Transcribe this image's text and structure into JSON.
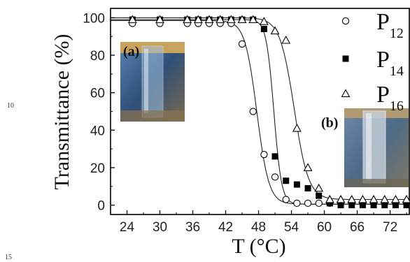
{
  "page": {
    "line_numbers": [
      "10",
      "15"
    ]
  },
  "chart_data": {
    "type": "scatter",
    "xlabel": "T (°C)",
    "ylabel": "Transmittance (%)",
    "xlim": [
      21,
      75.5
    ],
    "ylim": [
      -5,
      105
    ],
    "xticks": [
      24,
      30,
      36,
      42,
      48,
      54,
      60,
      66,
      72
    ],
    "yticks": [
      0,
      20,
      40,
      60,
      80,
      100
    ],
    "grid": false,
    "legend_position": "top-right",
    "legend": [
      {
        "base": "P",
        "sub": "12",
        "marker": "circle-open"
      },
      {
        "base": "P",
        "sub": "14",
        "marker": "square-filled"
      },
      {
        "base": "P",
        "sub": "16",
        "marker": "triangle-open"
      }
    ],
    "series": [
      {
        "name": "P12",
        "marker": "circle-open",
        "x": [
          25,
          30,
          35,
          37,
          39,
          41,
          43,
          45,
          47,
          49,
          51,
          53,
          55,
          57,
          59,
          61,
          63,
          65,
          67,
          69,
          71,
          73,
          75
        ],
        "y": [
          97,
          97,
          97,
          97,
          97,
          97,
          97,
          86,
          50,
          27,
          15,
          3,
          1,
          1,
          1,
          1,
          1,
          1,
          1,
          1,
          1,
          1,
          1
        ],
        "fit": {
          "top": 98.5,
          "bottom": 0.5,
          "t50": 47.7,
          "width": 1.1
        }
      },
      {
        "name": "P14",
        "marker": "square-filled",
        "x": [
          25,
          30,
          35,
          37,
          39,
          41,
          43,
          45,
          47,
          49,
          51,
          53,
          55,
          57,
          59,
          61,
          63,
          65,
          67,
          69,
          71,
          73,
          75
        ],
        "y": [
          99,
          99,
          99,
          99,
          99,
          99,
          99,
          99,
          99,
          94,
          26,
          13,
          11,
          9,
          5,
          1,
          0,
          0,
          0,
          0,
          0,
          0,
          0
        ],
        "fit": {
          "top": 99,
          "bottom": 0.5,
          "t50": 50.8,
          "width": 0.7
        }
      },
      {
        "name": "P16",
        "marker": "triangle-open",
        "x": [
          25,
          30,
          35,
          37,
          39,
          41,
          43,
          45,
          47,
          49,
          51,
          53,
          55,
          57,
          59,
          61,
          63,
          65,
          67,
          69,
          71,
          73,
          75
        ],
        "y": [
          99,
          99,
          99,
          99,
          99,
          99,
          99,
          99,
          99,
          98,
          93,
          88,
          41,
          20,
          9,
          3,
          3,
          3,
          3,
          3,
          3,
          3,
          3
        ],
        "fit": {
          "top": 100,
          "bottom": 3,
          "t50": 54.5,
          "width": 1.3
        }
      }
    ],
    "insets": [
      {
        "label": "(a)",
        "description_color": "#3a5f86"
      },
      {
        "label": "(b)",
        "description_color": "#5a7892"
      }
    ]
  }
}
